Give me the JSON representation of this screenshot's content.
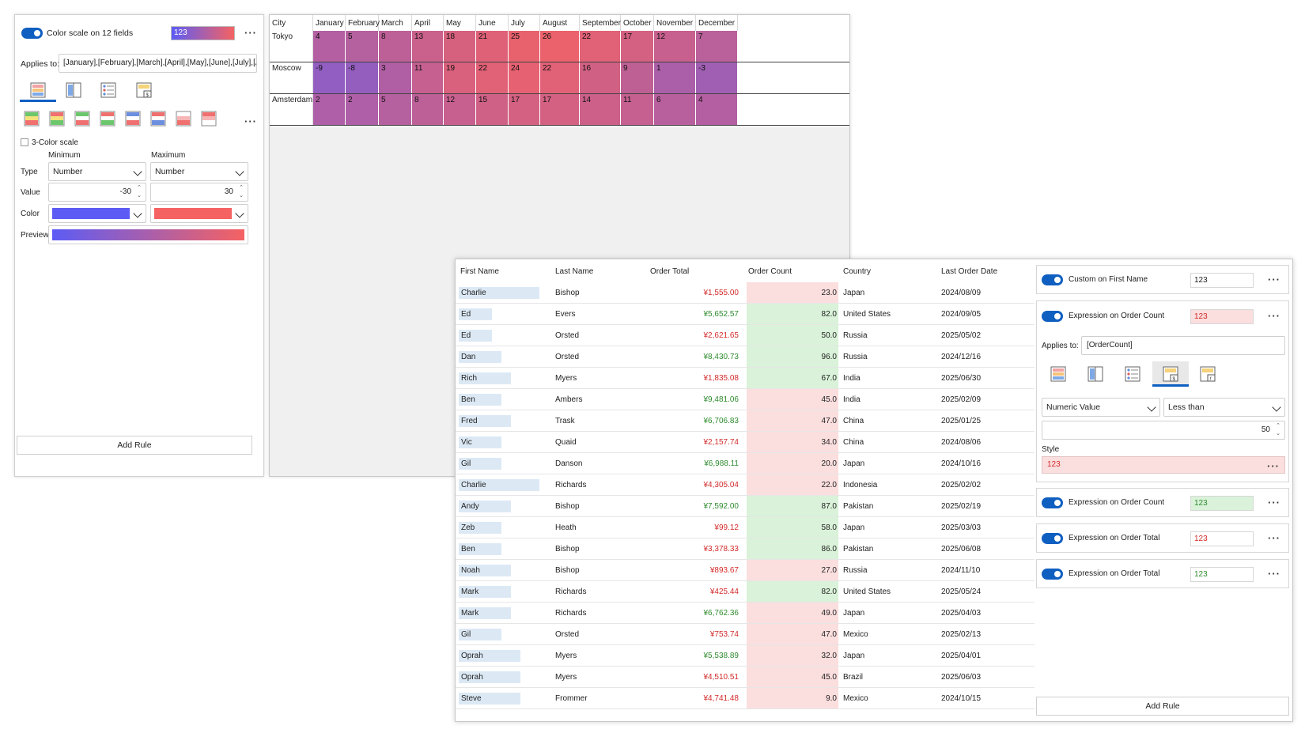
{
  "left_panel": {
    "rule_title": "Color scale on 12 fields",
    "sample_text": "123",
    "applies_label": "Applies to:",
    "applies_value": "[January],[February],[March],[April],[May],[June],[July],[Au",
    "three_color_label": "3-Color scale",
    "minimum_label": "Minimum",
    "maximum_label": "Maximum",
    "type_label": "Type",
    "value_label": "Value",
    "color_label": "Color",
    "preview_label": "Preview",
    "min_type": "Number",
    "max_type": "Number",
    "min_value": "-30",
    "max_value": "30",
    "min_color": "#5c5cf5",
    "max_color": "#f56262",
    "add_rule": "Add Rule"
  },
  "pivot": {
    "headers": [
      "City",
      "January",
      "February",
      "March",
      "April",
      "May",
      "June",
      "July",
      "August",
      "September",
      "October",
      "November",
      "December"
    ],
    "rows": [
      {
        "city": "Tokyo",
        "values": [
          "4",
          "5",
          "8",
          "13",
          "18",
          "21",
          "25",
          "26",
          "22",
          "17",
          "12",
          "7"
        ]
      },
      {
        "city": "Moscow",
        "values": [
          "-9",
          "-8",
          "3",
          "11",
          "19",
          "22",
          "24",
          "22",
          "16",
          "9",
          "1",
          "-3"
        ]
      },
      {
        "city": "Amsterdam",
        "values": [
          "2",
          "2",
          "5",
          "8",
          "12",
          "15",
          "17",
          "17",
          "14",
          "11",
          "6",
          "4"
        ]
      }
    ]
  },
  "orders": {
    "headers": [
      "First Name",
      "Last Name",
      "Order Total",
      "Order Count",
      "Country",
      "Last Order Date"
    ],
    "rows": [
      {
        "first": "Charlie",
        "last": "Bishop",
        "total": "¥1,555.00",
        "count": "23.0",
        "country": "Japan",
        "date": "2024/08/09"
      },
      {
        "first": "Ed",
        "last": "Evers",
        "total": "¥5,652.57",
        "count": "82.0",
        "country": "United States",
        "date": "2024/09/05"
      },
      {
        "first": "Ed",
        "last": "Orsted",
        "total": "¥2,621.65",
        "count": "50.0",
        "country": "Russia",
        "date": "2025/05/02"
      },
      {
        "first": "Dan",
        "last": "Orsted",
        "total": "¥8,430.73",
        "count": "96.0",
        "country": "Russia",
        "date": "2024/12/16"
      },
      {
        "first": "Rich",
        "last": "Myers",
        "total": "¥1,835.08",
        "count": "67.0",
        "country": "India",
        "date": "2025/06/30"
      },
      {
        "first": "Ben",
        "last": "Ambers",
        "total": "¥9,481.06",
        "count": "45.0",
        "country": "India",
        "date": "2025/02/09"
      },
      {
        "first": "Fred",
        "last": "Trask",
        "total": "¥6,706.83",
        "count": "47.0",
        "country": "China",
        "date": "2025/01/25"
      },
      {
        "first": "Vic",
        "last": "Quaid",
        "total": "¥2,157.74",
        "count": "34.0",
        "country": "China",
        "date": "2024/08/06"
      },
      {
        "first": "Gil",
        "last": "Danson",
        "total": "¥6,988.11",
        "count": "20.0",
        "country": "Japan",
        "date": "2024/10/16"
      },
      {
        "first": "Charlie",
        "last": "Richards",
        "total": "¥4,305.04",
        "count": "22.0",
        "country": "Indonesia",
        "date": "2025/02/02"
      },
      {
        "first": "Andy",
        "last": "Bishop",
        "total": "¥7,592.00",
        "count": "87.0",
        "country": "Pakistan",
        "date": "2025/02/19"
      },
      {
        "first": "Zeb",
        "last": "Heath",
        "total": "¥99.12",
        "count": "58.0",
        "country": "Japan",
        "date": "2025/03/03"
      },
      {
        "first": "Ben",
        "last": "Bishop",
        "total": "¥3,378.33",
        "count": "86.0",
        "country": "Pakistan",
        "date": "2025/06/08"
      },
      {
        "first": "Noah",
        "last": "Bishop",
        "total": "¥893.67",
        "count": "27.0",
        "country": "Russia",
        "date": "2024/11/10"
      },
      {
        "first": "Mark",
        "last": "Richards",
        "total": "¥425.44",
        "count": "82.0",
        "country": "United States",
        "date": "2025/05/24"
      },
      {
        "first": "Mark",
        "last": "Richards",
        "total": "¥6,762.36",
        "count": "49.0",
        "country": "Japan",
        "date": "2025/04/03"
      },
      {
        "first": "Gil",
        "last": "Orsted",
        "total": "¥753.74",
        "count": "47.0",
        "country": "Mexico",
        "date": "2025/02/13"
      },
      {
        "first": "Oprah",
        "last": "Myers",
        "total": "¥5,538.89",
        "count": "32.0",
        "country": "Japan",
        "date": "2025/04/01"
      },
      {
        "first": "Oprah",
        "last": "Myers",
        "total": "¥4,510.51",
        "count": "45.0",
        "country": "Brazil",
        "date": "2025/06/03"
      },
      {
        "first": "Steve",
        "last": "Frommer",
        "total": "¥4,741.48",
        "count": "9.0",
        "country": "Mexico",
        "date": "2024/10/15"
      }
    ]
  },
  "rules_panel": {
    "rule1_title": "Custom on First Name",
    "rule2_title": "Expression on Order Count",
    "rule3_title": "Expression on Order Count",
    "rule4_title": "Expression on Order Total",
    "rule5_title": "Expression on Order Total",
    "sample_text": "123",
    "applies_label": "Applies to:",
    "applies_value": "[OrderCount]",
    "condition_field": "Numeric Value",
    "condition_op": "Less than",
    "condition_value": "50",
    "style_label": "Style",
    "style_sample": "123",
    "add_rule": "Add Rule"
  },
  "colors": {
    "accent": "#0f5fc1",
    "positive_green": "#2e8b2e",
    "negative_red": "#d22b2b",
    "green_fill": "#d9f2d9",
    "red_fill": "#fbdede",
    "name_bar": "#dce9f5"
  }
}
